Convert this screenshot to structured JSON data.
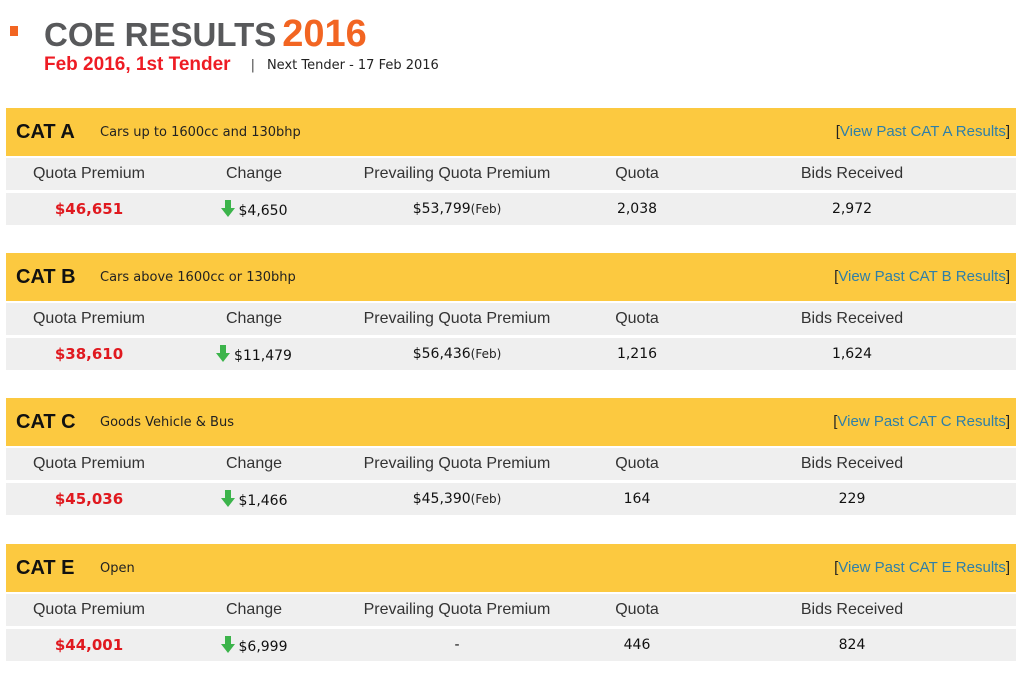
{
  "header": {
    "title": "COE RESULTS",
    "year": "2016",
    "tender": "Feb 2016, 1st Tender",
    "separator": "|",
    "next_tender": "Next Tender - 17 Feb 2016"
  },
  "columns": [
    "Quota Premium",
    "Change",
    "Prevailing Quota Premium",
    "Quota",
    "Bids Received"
  ],
  "categories": [
    {
      "name": "CAT A",
      "description": "Cars up to 1600cc and 130bhp",
      "link": "View Past CAT A Results",
      "premium": "$46,651",
      "change": "$4,650",
      "change_direction": "down",
      "prevailing": "$53,799",
      "prevailing_month": "(Feb)",
      "quota": "2,038",
      "bids": "2,972"
    },
    {
      "name": "CAT B",
      "description": "Cars above 1600cc or 130bhp",
      "link": "View Past CAT B Results",
      "premium": "$38,610",
      "change": "$11,479",
      "change_direction": "down",
      "prevailing": "$56,436",
      "prevailing_month": "(Feb)",
      "quota": "1,216",
      "bids": "1,624"
    },
    {
      "name": "CAT C",
      "description": "Goods Vehicle & Bus",
      "link": "View Past CAT C Results",
      "premium": "$45,036",
      "change": "$1,466",
      "change_direction": "down",
      "prevailing": "$45,390",
      "prevailing_month": "(Feb)",
      "quota": "164",
      "bids": "229"
    },
    {
      "name": "CAT E",
      "description": "Open",
      "link": "View Past CAT E Results",
      "premium": "$44,001",
      "change": "$6,999",
      "change_direction": "down",
      "prevailing": "-",
      "prevailing_month": "",
      "quota": "446",
      "bids": "824"
    }
  ],
  "colors": {
    "accent_orange": "#f26522",
    "tender_red": "#ee1c24",
    "category_bar": "#fcc940",
    "premium_red": "#e0191f",
    "down_arrow_green": "#3cb44b",
    "link_blue": "#2e7fa8"
  },
  "icons": {
    "change_arrow": "arrow-down-icon"
  }
}
